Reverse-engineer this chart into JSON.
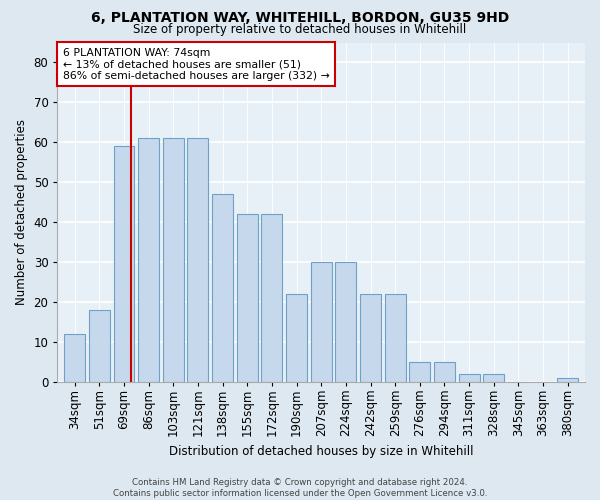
{
  "title": "6, PLANTATION WAY, WHITEHILL, BORDON, GU35 9HD",
  "subtitle": "Size of property relative to detached houses in Whitehill",
  "xlabel": "Distribution of detached houses by size in Whitehill",
  "ylabel": "Number of detached properties",
  "bar_heights": [
    12,
    18,
    59,
    61,
    61,
    61,
    47,
    42,
    42,
    22,
    30,
    30,
    22,
    22,
    5,
    5,
    2,
    2,
    0,
    0,
    1
  ],
  "bin_labels": [
    "34sqm",
    "51sqm",
    "69sqm",
    "86sqm",
    "103sqm",
    "121sqm",
    "138sqm",
    "155sqm",
    "172sqm",
    "190sqm",
    "207sqm",
    "224sqm",
    "242sqm",
    "259sqm",
    "276sqm",
    "294sqm",
    "311sqm",
    "328sqm",
    "345sqm",
    "363sqm",
    "380sqm"
  ],
  "bar_color": "#c6d9ec",
  "bar_edge_color": "#6fa0c8",
  "vline_color": "#cc0000",
  "vline_pos": 2.294,
  "annotation_text": "6 PLANTATION WAY: 74sqm\n← 13% of detached houses are smaller (51)\n86% of semi-detached houses are larger (332) →",
  "annotation_box_color": "#ffffff",
  "annotation_box_edge": "#cc0000",
  "ylim": [
    0,
    85
  ],
  "yticks": [
    0,
    10,
    20,
    30,
    40,
    50,
    60,
    70,
    80
  ],
  "footer": "Contains HM Land Registry data © Crown copyright and database right 2024.\nContains public sector information licensed under the Open Government Licence v3.0.",
  "background_color": "#dde8f0",
  "plot_bg_color": "#e8f0f7"
}
